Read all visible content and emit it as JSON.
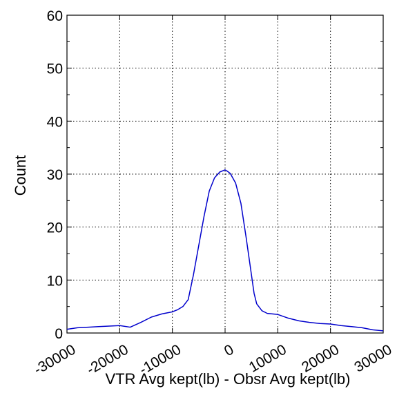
{
  "chart_data": {
    "type": "line",
    "title": "",
    "xlabel": "VTR Avg kept(lb) - Obsr Avg kept(lb)",
    "ylabel": "Count",
    "xlim": [
      -30000,
      30000
    ],
    "ylim": [
      0,
      60
    ],
    "grid": true,
    "grid_style": "dotted",
    "x_ticks": [
      -30000,
      -20000,
      -10000,
      0,
      10000,
      20000,
      30000
    ],
    "x_tick_labels": [
      "-30000",
      "-20000",
      "-10000",
      "0",
      "10000",
      "20000",
      "30000"
    ],
    "x_tick_rotation_deg": -30,
    "y_ticks": [
      0,
      10,
      20,
      30,
      40,
      50,
      60
    ],
    "y_tick_labels": [
      "0",
      "10",
      "20",
      "30",
      "40",
      "50",
      "60"
    ],
    "series": [
      {
        "color": "#0000cc",
        "x": [
          -30000,
          -28000,
          -26000,
          -24000,
          -22000,
          -20000,
          -18000,
          -16000,
          -14000,
          -12000,
          -10000,
          -9000,
          -8000,
          -7000,
          -6000,
          -5000,
          -4000,
          -3000,
          -2000,
          -1000,
          0,
          500,
          1000,
          2000,
          3000,
          4000,
          5000,
          5500,
          6000,
          7000,
          8000,
          9000,
          10000,
          12000,
          14000,
          16000,
          18000,
          20000,
          22000,
          24000,
          26000,
          28000,
          30000
        ],
        "y": [
          0.7,
          1.0,
          1.1,
          1.2,
          1.3,
          1.4,
          1.1,
          2.0,
          3.0,
          3.6,
          4.0,
          4.4,
          5.0,
          6.3,
          11.0,
          16.5,
          22.0,
          26.8,
          29.3,
          30.4,
          30.8,
          30.5,
          30.1,
          28.3,
          24.5,
          18.0,
          11.0,
          7.5,
          5.5,
          4.2,
          3.7,
          3.6,
          3.5,
          2.8,
          2.3,
          2.0,
          1.8,
          1.7,
          1.4,
          1.2,
          1.0,
          0.6,
          0.4
        ]
      }
    ]
  }
}
